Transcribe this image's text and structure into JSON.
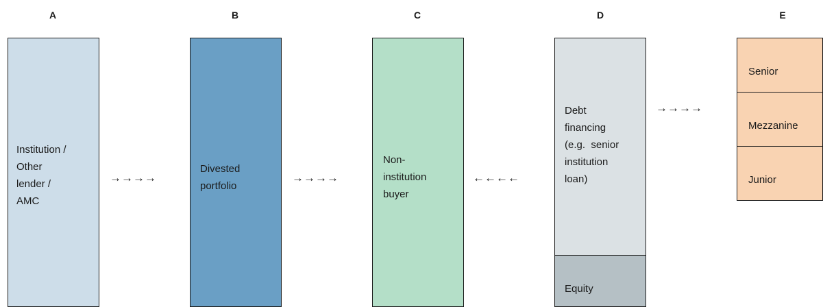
{
  "columns": {
    "a": {
      "label": "A",
      "text": [
        "Institution /",
        "Other",
        "lender /",
        "AMC"
      ]
    },
    "b": {
      "label": "B",
      "text": [
        "Divested",
        "portfolio"
      ]
    },
    "c": {
      "label": "C",
      "text": [
        "Non-",
        "institution",
        "buyer"
      ]
    },
    "d": {
      "label": "D",
      "debt_text": [
        "Debt",
        "financing",
        "(e.g.  senior",
        "institution",
        "loan)"
      ],
      "equity_text": "Equity"
    },
    "e": {
      "label": "E",
      "tranches": [
        "Senior",
        "Mezzanine",
        "Junior"
      ]
    }
  },
  "arrows": {
    "a_to_b": "→→→→",
    "b_to_c": "→→→→",
    "d_to_c": "←←←←",
    "d_to_e": "→→→→"
  },
  "colors": {
    "a_fill": "#cddde9",
    "b_fill": "#6a9fc5",
    "c_fill": "#b4dfc8",
    "d_debt_fill": "#dbe1e4",
    "d_equity_fill": "#b5c0c5",
    "e_fill": "#f9d3b2"
  }
}
